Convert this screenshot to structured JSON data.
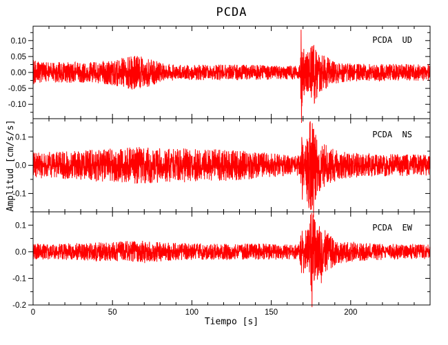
{
  "figure": {
    "background": "#ffffff",
    "frame_color": "#000000"
  },
  "chart_data": {
    "type": "line",
    "title": "PCDA",
    "xlabel": "Tiempo [s]",
    "ylabel": "Amplitud [cm/s/s]",
    "trace_color": "#ff0000",
    "grid": false,
    "x_range": [
      0,
      250
    ],
    "x_major_ticks": [
      0,
      50,
      100,
      150,
      200
    ],
    "x_major_labels": [
      "0",
      "50",
      "100",
      "150",
      "200"
    ],
    "x_minor_ticks": [
      10,
      20,
      30,
      40,
      60,
      70,
      80,
      90,
      110,
      120,
      130,
      140,
      160,
      170,
      180,
      190,
      210,
      220,
      230,
      240
    ],
    "panels": [
      {
        "label": "PCDA  UD",
        "station": "PCDA",
        "component": "UD",
        "y_range": [
          -0.145,
          0.145
        ],
        "y_major_ticks": [
          0.1,
          0.05,
          0.0,
          -0.05,
          -0.1
        ],
        "y_major_labels": [
          "0.10",
          "0.05",
          "0.00",
          "-0.05",
          "-0.10"
        ],
        "y_minor_ticks": [
          0.125,
          0.075,
          0.025,
          -0.025,
          -0.075,
          -0.125
        ],
        "noise_envelope": [
          [
            0,
            0.04
          ],
          [
            5,
            0.032
          ],
          [
            40,
            0.033
          ],
          [
            52,
            0.042
          ],
          [
            63,
            0.055
          ],
          [
            72,
            0.046
          ],
          [
            82,
            0.03
          ],
          [
            90,
            0.024
          ],
          [
            130,
            0.025
          ],
          [
            155,
            0.022
          ],
          [
            167,
            0.021
          ],
          [
            168.3,
            0.03
          ],
          [
            168.8,
            0.14
          ],
          [
            169.6,
            0.115
          ],
          [
            170.5,
            0.075
          ],
          [
            172,
            0.063
          ],
          [
            174,
            0.075
          ],
          [
            176,
            0.11
          ],
          [
            178,
            0.1
          ],
          [
            180,
            0.075
          ],
          [
            183,
            0.057
          ],
          [
            187,
            0.042
          ],
          [
            193,
            0.033
          ],
          [
            205,
            0.027
          ],
          [
            250,
            0.026
          ]
        ],
        "spikes": [
          [
            168.8,
            0.134
          ],
          [
            169.05,
            -0.158
          ],
          [
            176.5,
            0.072
          ],
          [
            177.2,
            -0.096
          ]
        ]
      },
      {
        "label": "PCDA  NS",
        "station": "PCDA",
        "component": "NS",
        "y_range": [
          -0.165,
          0.165
        ],
        "y_major_ticks": [
          0.1,
          0.0,
          -0.1
        ],
        "y_major_labels": [
          "0.1",
          "0.0",
          "-0.1"
        ],
        "y_minor_ticks": [
          0.15,
          0.05,
          -0.05,
          -0.15
        ],
        "noise_envelope": [
          [
            0,
            0.045
          ],
          [
            25,
            0.051
          ],
          [
            50,
            0.06
          ],
          [
            65,
            0.066
          ],
          [
            80,
            0.063
          ],
          [
            100,
            0.06
          ],
          [
            120,
            0.057
          ],
          [
            140,
            0.048
          ],
          [
            155,
            0.04
          ],
          [
            166,
            0.036
          ],
          [
            168.5,
            0.042
          ],
          [
            169,
            0.11
          ],
          [
            170,
            0.08
          ],
          [
            171.5,
            0.075
          ],
          [
            173,
            0.15
          ],
          [
            174.5,
            0.16
          ],
          [
            176,
            0.155
          ],
          [
            177.5,
            0.13
          ],
          [
            179,
            0.11
          ],
          [
            181,
            0.095
          ],
          [
            184,
            0.075
          ],
          [
            188,
            0.06
          ],
          [
            193,
            0.05
          ],
          [
            200,
            0.045
          ],
          [
            215,
            0.04
          ],
          [
            250,
            0.038
          ]
        ],
        "spikes": [
          [
            169.2,
            0.1
          ],
          [
            169.5,
            -0.122
          ],
          [
            173.6,
            -0.132
          ],
          [
            174.3,
            0.152
          ],
          [
            175.8,
            0.149
          ],
          [
            176.6,
            -0.185
          ]
        ]
      },
      {
        "label": "PCDA  EW",
        "station": "PCDA",
        "component": "EW",
        "y_range": [
          -0.2,
          0.15
        ],
        "y_major_ticks": [
          0.1,
          0.0,
          -0.1,
          -0.2
        ],
        "y_major_labels": [
          "0.1",
          "0.0",
          "-0.1",
          "-0.2"
        ],
        "y_minor_ticks": [
          0.15,
          0.05,
          -0.05,
          -0.15
        ],
        "noise_envelope": [
          [
            0,
            0.03
          ],
          [
            30,
            0.033
          ],
          [
            58,
            0.04
          ],
          [
            70,
            0.043
          ],
          [
            85,
            0.034
          ],
          [
            115,
            0.03
          ],
          [
            145,
            0.031
          ],
          [
            165,
            0.028
          ],
          [
            168,
            0.033
          ],
          [
            169,
            0.085
          ],
          [
            170.5,
            0.09
          ],
          [
            172,
            0.085
          ],
          [
            173.5,
            0.1
          ],
          [
            175,
            0.15
          ],
          [
            176,
            0.165
          ],
          [
            177.5,
            0.12
          ],
          [
            179,
            0.11
          ],
          [
            181,
            0.1
          ],
          [
            184,
            0.08
          ],
          [
            187,
            0.065
          ],
          [
            191,
            0.052
          ],
          [
            196,
            0.042
          ],
          [
            205,
            0.035
          ],
          [
            225,
            0.03
          ],
          [
            250,
            0.029
          ]
        ],
        "spikes": [
          [
            175.4,
            0.146
          ],
          [
            175.7,
            -0.208
          ],
          [
            176.8,
            0.122
          ],
          [
            181.5,
            -0.118
          ]
        ]
      }
    ]
  }
}
